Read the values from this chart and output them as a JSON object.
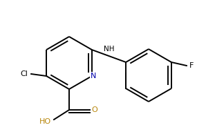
{
  "bg_color": "#ffffff",
  "bond_color": "#000000",
  "n_color": "#0000aa",
  "o_color": "#b8860b",
  "lw": 1.4,
  "dbo": 5,
  "figsize": [
    2.98,
    1.91
  ],
  "dpi": 100,
  "xlim": [
    0,
    298
  ],
  "ylim": [
    0,
    191
  ]
}
